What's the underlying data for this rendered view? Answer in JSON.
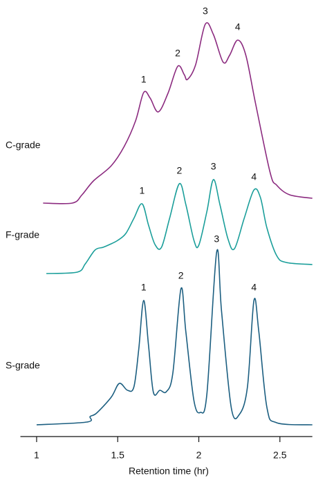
{
  "chart_data": {
    "type": "line",
    "xlabel": "Retention time (hr)",
    "xlim": [
      0.9,
      2.7
    ],
    "xticks": [
      1,
      1.5,
      2,
      2.5
    ],
    "series": [
      {
        "name": "C-grade",
        "color": "#8b2a7f",
        "x": [
          1.04,
          1.22,
          1.28,
          1.35,
          1.46,
          1.54,
          1.61,
          1.66,
          1.7,
          1.75,
          1.81,
          1.87,
          1.91,
          1.93,
          1.98,
          2.04,
          2.09,
          2.15,
          2.19,
          2.24,
          2.29,
          2.35,
          2.44,
          2.48,
          2.56,
          2.7
        ],
        "values": [
          0,
          0,
          4.8,
          12.8,
          21.6,
          32.8,
          47.6,
          64,
          60.8,
          52.8,
          63.6,
          79.2,
          74.4,
          71.6,
          80,
          103.6,
          97.6,
          81.6,
          85.6,
          94.4,
          85.6,
          57.6,
          17.6,
          10.4,
          4.8,
          2.8
        ],
        "peak_labels": [
          "1",
          "2",
          "3",
          "4"
        ],
        "peak_x": [
          1.66,
          1.87,
          2.04,
          2.24
        ]
      },
      {
        "name": "F-grade",
        "color": "#1a9e9a",
        "x": [
          1.06,
          1.25,
          1.3,
          1.36,
          1.41,
          1.45,
          1.5,
          1.55,
          1.6,
          1.65,
          1.69,
          1.73,
          1.77,
          1.82,
          1.88,
          1.92,
          1.97,
          2.0,
          2.05,
          2.09,
          2.13,
          2.18,
          2.22,
          2.28,
          2.34,
          2.38,
          2.42,
          2.48,
          2.54,
          2.7
        ],
        "values": [
          0,
          0.8,
          5.6,
          13.6,
          15.2,
          16.8,
          19.2,
          23.2,
          32,
          40.4,
          28,
          16.8,
          15.2,
          32,
          52,
          40,
          19.2,
          16.4,
          36,
          54.4,
          40,
          20,
          14.4,
          32,
          48.4,
          44,
          26.4,
          10.4,
          6.4,
          5.2
        ],
        "peak_labels": [
          "1",
          "2",
          "3",
          "4"
        ],
        "peak_x": [
          1.65,
          1.88,
          2.09,
          2.34
        ]
      },
      {
        "name": "S-grade",
        "color": "#1b5e80",
        "x": [
          1.0,
          1.31,
          1.33,
          1.37,
          1.46,
          1.51,
          1.56,
          1.6,
          1.63,
          1.66,
          1.69,
          1.72,
          1.76,
          1.8,
          1.84,
          1.89,
          1.92,
          1.97,
          2.01,
          2.05,
          2.11,
          2.14,
          2.2,
          2.25,
          2.3,
          2.34,
          2.37,
          2.42,
          2.48,
          2.7
        ],
        "values": [
          0,
          1.6,
          4.8,
          6.8,
          16,
          24,
          20,
          22,
          44,
          72,
          46,
          18.8,
          20,
          19.2,
          30,
          78.8,
          54,
          14,
          7.2,
          18,
          100,
          66,
          10,
          6,
          22,
          72,
          54,
          10,
          1.2,
          0
        ],
        "peak_labels": [
          "1",
          "2",
          "3",
          "4"
        ],
        "peak_x": [
          1.66,
          1.89,
          2.11,
          2.34
        ]
      }
    ]
  }
}
